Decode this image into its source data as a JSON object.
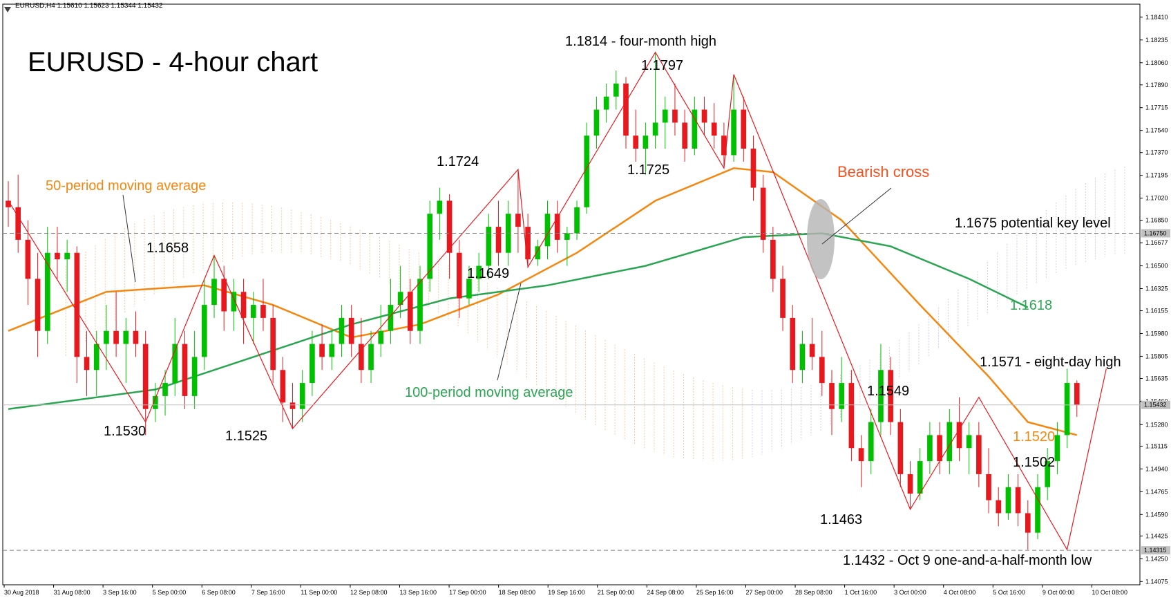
{
  "header": {
    "symbol_info": "EURUSD,H4  1.15610 1.15623 1.15344 1.15432"
  },
  "chart_data": {
    "type": "candlestick",
    "title": "EURUSD - 4-hour chart",
    "ylim": [
      1.1405,
      1.1851
    ],
    "y_ticks": [
      "1.18410",
      "1.18235",
      "1.18060",
      "1.17890",
      "1.17715",
      "1.17540",
      "1.17370",
      "1.17195",
      "1.17020",
      "1.16850",
      "1.16677",
      "1.16500",
      "1.16325",
      "1.16155",
      "1.15980",
      "1.15805",
      "1.15635",
      "1.15460",
      "1.15280",
      "1.15115",
      "1.14940",
      "1.14765",
      "1.14590",
      "1.14425",
      "1.14250",
      "1.14075"
    ],
    "price_labels": {
      "current": "1.15432",
      "key_level": "1.16750",
      "low_level": "1.14315"
    },
    "x_ticks": [
      "30 Aug 2018",
      "31 Aug 08:00",
      "3 Sep 16:00",
      "5 Sep 00:00",
      "6 Sep 08:00",
      "7 Sep 16:00",
      "11 Sep 00:00",
      "12 Sep 08:00",
      "13 Sep 16:00",
      "17 Sep 00:00",
      "18 Sep 08:00",
      "19 Sep 16:00",
      "21 Sep 00:00",
      "24 Sep 08:00",
      "25 Sep 16:00",
      "27 Sep 00:00",
      "28 Sep 08:00",
      "1 Oct 16:00",
      "3 Oct 00:00",
      "4 Oct 08:00",
      "5 Oct 16:00",
      "9 Oct 00:00",
      "10 Oct 08:00"
    ],
    "candles": [
      [
        1.17,
        1.1715,
        1.168,
        1.1695
      ],
      [
        1.1695,
        1.172,
        1.166,
        1.167
      ],
      [
        1.167,
        1.1685,
        1.162,
        1.164
      ],
      [
        1.164,
        1.166,
        1.158,
        1.16
      ],
      [
        1.16,
        1.168,
        1.159,
        1.166
      ],
      [
        1.166,
        1.168,
        1.164,
        1.1655
      ],
      [
        1.1655,
        1.167,
        1.163,
        1.166
      ],
      [
        1.166,
        1.1665,
        1.156,
        1.158
      ],
      [
        1.158,
        1.16,
        1.155,
        1.157
      ],
      [
        1.157,
        1.16,
        1.155,
        1.159
      ],
      [
        1.159,
        1.162,
        1.157,
        1.16
      ],
      [
        1.16,
        1.163,
        1.158,
        1.159
      ],
      [
        1.159,
        1.161,
        1.156,
        1.16
      ],
      [
        1.16,
        1.1615,
        1.158,
        1.159
      ],
      [
        1.159,
        1.16,
        1.152,
        1.154
      ],
      [
        1.154,
        1.156,
        1.153,
        1.155
      ],
      [
        1.155,
        1.157,
        1.1535,
        1.156
      ],
      [
        1.156,
        1.161,
        1.155,
        1.159
      ],
      [
        1.159,
        1.16,
        1.154,
        1.155
      ],
      [
        1.155,
        1.16,
        1.154,
        1.158
      ],
      [
        1.158,
        1.164,
        1.157,
        1.162
      ],
      [
        1.162,
        1.1658,
        1.161,
        1.164
      ],
      [
        1.164,
        1.165,
        1.16,
        1.1615
      ],
      [
        1.1615,
        1.164,
        1.16,
        1.163
      ],
      [
        1.163,
        1.164,
        1.159,
        1.161
      ],
      [
        1.161,
        1.163,
        1.159,
        1.162
      ],
      [
        1.162,
        1.164,
        1.16,
        1.161
      ],
      [
        1.161,
        1.162,
        1.156,
        1.157
      ],
      [
        1.157,
        1.158,
        1.153,
        1.1545
      ],
      [
        1.1545,
        1.156,
        1.1525,
        1.154
      ],
      [
        1.154,
        1.157,
        1.153,
        1.156
      ],
      [
        1.156,
        1.16,
        1.155,
        1.159
      ],
      [
        1.159,
        1.1605,
        1.157,
        1.158
      ],
      [
        1.158,
        1.16,
        1.157,
        1.159
      ],
      [
        1.159,
        1.162,
        1.158,
        1.161
      ],
      [
        1.161,
        1.162,
        1.158,
        1.159
      ],
      [
        1.159,
        1.161,
        1.156,
        1.157
      ],
      [
        1.157,
        1.16,
        1.156,
        1.159
      ],
      [
        1.159,
        1.162,
        1.158,
        1.16
      ],
      [
        1.16,
        1.164,
        1.159,
        1.162
      ],
      [
        1.162,
        1.165,
        1.161,
        1.163
      ],
      [
        1.163,
        1.164,
        1.159,
        1.16
      ],
      [
        1.16,
        1.165,
        1.159,
        1.164
      ],
      [
        1.164,
        1.17,
        1.163,
        1.169
      ],
      [
        1.169,
        1.171,
        1.167,
        1.17
      ],
      [
        1.17,
        1.1705,
        1.164,
        1.166
      ],
      [
        1.166,
        1.167,
        1.161,
        1.1625
      ],
      [
        1.1625,
        1.165,
        1.162,
        1.164
      ],
      [
        1.164,
        1.166,
        1.163,
        1.165
      ],
      [
        1.165,
        1.169,
        1.164,
        1.168
      ],
      [
        1.168,
        1.17,
        1.165,
        1.166
      ],
      [
        1.166,
        1.17,
        1.165,
        1.169
      ],
      [
        1.169,
        1.1724,
        1.166,
        1.168
      ],
      [
        1.168,
        1.169,
        1.1649,
        1.1655
      ],
      [
        1.1655,
        1.167,
        1.165,
        1.1665
      ],
      [
        1.1665,
        1.17,
        1.1655,
        1.169
      ],
      [
        1.169,
        1.17,
        1.166,
        1.167
      ],
      [
        1.167,
        1.168,
        1.165,
        1.1675
      ],
      [
        1.1675,
        1.17,
        1.167,
        1.1695
      ],
      [
        1.1695,
        1.176,
        1.169,
        1.175
      ],
      [
        1.175,
        1.178,
        1.174,
        1.177
      ],
      [
        1.177,
        1.179,
        1.176,
        1.178
      ],
      [
        1.178,
        1.18,
        1.177,
        1.179
      ],
      [
        1.179,
        1.1795,
        1.174,
        1.175
      ],
      [
        1.175,
        1.177,
        1.173,
        1.174
      ],
      [
        1.174,
        1.176,
        1.172,
        1.175
      ],
      [
        1.175,
        1.1814,
        1.174,
        1.176
      ],
      [
        1.176,
        1.178,
        1.174,
        1.177
      ],
      [
        1.177,
        1.179,
        1.175,
        1.176
      ],
      [
        1.176,
        1.177,
        1.173,
        1.174
      ],
      [
        1.174,
        1.178,
        1.1735,
        1.177
      ],
      [
        1.177,
        1.178,
        1.175,
        1.176
      ],
      [
        1.176,
        1.1775,
        1.174,
        1.175
      ],
      [
        1.175,
        1.176,
        1.1725,
        1.1735
      ],
      [
        1.1735,
        1.1797,
        1.173,
        1.177
      ],
      [
        1.177,
        1.178,
        1.173,
        1.174
      ],
      [
        1.174,
        1.175,
        1.17,
        1.171
      ],
      [
        1.171,
        1.172,
        1.166,
        1.167
      ],
      [
        1.167,
        1.168,
        1.163,
        1.164
      ],
      [
        1.164,
        1.165,
        1.16,
        1.161
      ],
      [
        1.161,
        1.162,
        1.156,
        1.157
      ],
      [
        1.157,
        1.16,
        1.156,
        1.159
      ],
      [
        1.159,
        1.161,
        1.157,
        1.158
      ],
      [
        1.158,
        1.16,
        1.155,
        1.156
      ],
      [
        1.156,
        1.157,
        1.152,
        1.154
      ],
      [
        1.154,
        1.158,
        1.153,
        1.156
      ],
      [
        1.156,
        1.157,
        1.15,
        1.151
      ],
      [
        1.151,
        1.152,
        1.148,
        1.15
      ],
      [
        1.15,
        1.154,
        1.149,
        1.153
      ],
      [
        1.153,
        1.159,
        1.152,
        1.157
      ],
      [
        1.157,
        1.158,
        1.152,
        1.153
      ],
      [
        1.153,
        1.154,
        1.148,
        1.149
      ],
      [
        1.149,
        1.15,
        1.1463,
        1.1475
      ],
      [
        1.1475,
        1.151,
        1.147,
        1.15
      ],
      [
        1.15,
        1.153,
        1.149,
        1.152
      ],
      [
        1.152,
        1.153,
        1.149,
        1.15
      ],
      [
        1.15,
        1.154,
        1.149,
        1.153
      ],
      [
        1.153,
        1.1549,
        1.15,
        1.151
      ],
      [
        1.151,
        1.153,
        1.149,
        1.152
      ],
      [
        1.152,
        1.153,
        1.148,
        1.149
      ],
      [
        1.149,
        1.151,
        1.146,
        1.147
      ],
      [
        1.147,
        1.148,
        1.145,
        1.146
      ],
      [
        1.146,
        1.149,
        1.1455,
        1.148
      ],
      [
        1.148,
        1.149,
        1.145,
        1.146
      ],
      [
        1.146,
        1.147,
        1.1432,
        1.1445
      ],
      [
        1.1445,
        1.149,
        1.144,
        1.148
      ],
      [
        1.148,
        1.151,
        1.147,
        1.15
      ],
      [
        1.15,
        1.153,
        1.149,
        1.152
      ],
      [
        1.152,
        1.1571,
        1.151,
        1.156
      ],
      [
        1.156,
        1.1562,
        1.1534,
        1.1543
      ]
    ],
    "lines": {
      "ma50": {
        "name": "50-period moving average",
        "color": "#f5870f",
        "points": [
          [
            0,
            1.16
          ],
          [
            10,
            1.163
          ],
          [
            20,
            1.1635
          ],
          [
            27,
            1.162
          ],
          [
            35,
            1.1595
          ],
          [
            42,
            1.1605
          ],
          [
            50,
            1.1628
          ],
          [
            58,
            1.166
          ],
          [
            66,
            1.17
          ],
          [
            74,
            1.1725
          ],
          [
            78,
            1.1722
          ],
          [
            85,
            1.1685
          ],
          [
            93,
            1.162
          ],
          [
            100,
            1.1565
          ],
          [
            104,
            1.153
          ],
          [
            109,
            1.152
          ]
        ]
      },
      "ma100": {
        "name": "100-period moving average",
        "color": "#2aa552",
        "points": [
          [
            0,
            1.154
          ],
          [
            15,
            1.1555
          ],
          [
            25,
            1.158
          ],
          [
            35,
            1.1605
          ],
          [
            45,
            1.1625
          ],
          [
            55,
            1.1635
          ],
          [
            65,
            1.165
          ],
          [
            75,
            1.1672
          ],
          [
            83,
            1.1675
          ],
          [
            90,
            1.1665
          ],
          [
            98,
            1.164
          ],
          [
            104,
            1.1618
          ]
        ]
      }
    },
    "annotations": {
      "four_month_high": "1.1814 - four-month high",
      "label_1797": "1.1797",
      "label_1725": "1.1725",
      "label_1724": "1.1724",
      "label_1658": "1.1658",
      "label_1649": "1.1649",
      "label_1530": "1.1530",
      "label_1525": "1.1525",
      "label_1549": "1.1549",
      "label_1463": "1.1463",
      "eight_day_high": "1.1571 - eight-day high",
      "label_1520": "1.1520",
      "label_1618": "1.1618",
      "label_1502": "1.1502",
      "key_level": "1.1675 potential key level",
      "oct9_low": "1.1432 - Oct 9 one-and-a-half-month low",
      "bearish_cross": "Bearish cross",
      "ma50_label": "50-period moving average",
      "ma100_label": "100-period moving average"
    },
    "colors": {
      "bull": "#00c000",
      "bear": "#e8191e",
      "ma50": "#f5870f",
      "ma100": "#2aa552",
      "annotation_red": "#f4511e",
      "grid_dashed": "#808080"
    }
  }
}
